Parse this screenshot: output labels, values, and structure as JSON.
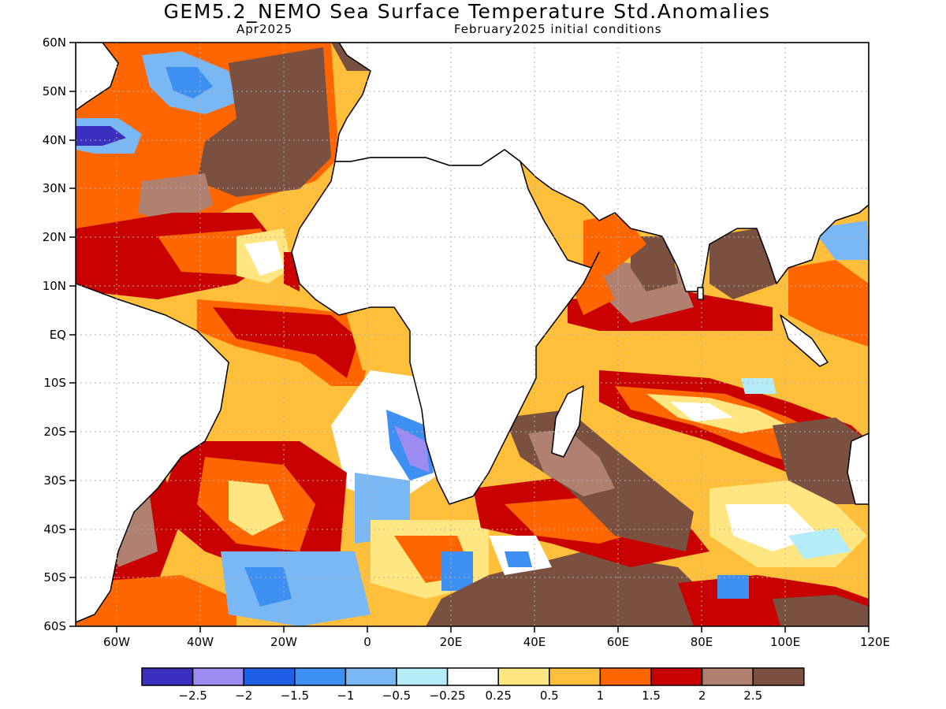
{
  "title": "GEM5.2_NEMO Sea Surface Temperature Std.Anomalies",
  "valid_month": "Apr2025",
  "initial_conditions": "February2025 initial conditions",
  "lat_labels": [
    "60N",
    "50N",
    "40N",
    "30N",
    "20N",
    "10N",
    "EQ",
    "10S",
    "20S",
    "30S",
    "40S",
    "50S",
    "60S"
  ],
  "lon_labels": [
    "60W",
    "40W",
    "20W",
    "0",
    "20E",
    "40E",
    "60E",
    "80E",
    "100E",
    "120E"
  ],
  "colorbar": {
    "colors": [
      "#3a2fbf",
      "#9c8cf2",
      "#1f5fe6",
      "#3d8ff2",
      "#7ab8f5",
      "#b4ecf8",
      "#ffffff",
      "#ffe680",
      "#ffbf3a",
      "#ff6600",
      "#c80000",
      "#b08070",
      "#7a5040"
    ],
    "labels": [
      "-2.5",
      "-2",
      "-1.5",
      "-1",
      "-0.5",
      "-0.25",
      "0.25",
      "0.5",
      "1",
      "1.5",
      "2",
      "2.5"
    ]
  },
  "colors": {
    "land": "#ffffff",
    "coast": "#000000",
    "grid": "#b0b0b0"
  }
}
